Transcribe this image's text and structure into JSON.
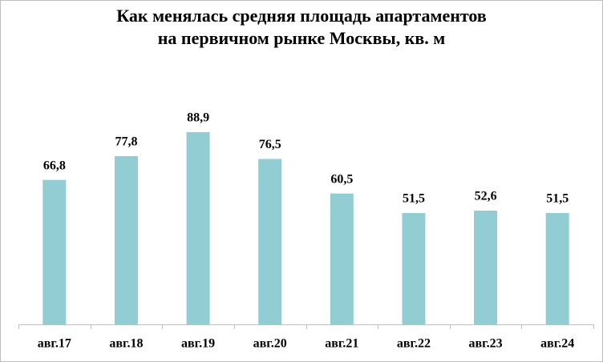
{
  "chart_data": {
    "type": "bar",
    "title": [
      "Как менялась средняя площадь апартаментов",
      "на первичном рынке Москвы, кв. м"
    ],
    "categories": [
      "авг.17",
      "авг.18",
      "авг.19",
      "авг.20",
      "авг.21",
      "авг.22",
      "авг.23",
      "авг.24"
    ],
    "values": [
      66.8,
      77.8,
      88.9,
      76.5,
      60.5,
      51.5,
      52.6,
      51.5
    ],
    "value_labels": [
      "66,8",
      "77,8",
      "88,9",
      "76,5",
      "60,5",
      "51,5",
      "52,6",
      "51,5"
    ],
    "color": "#92cdd4",
    "ylim": [
      0,
      100
    ]
  }
}
